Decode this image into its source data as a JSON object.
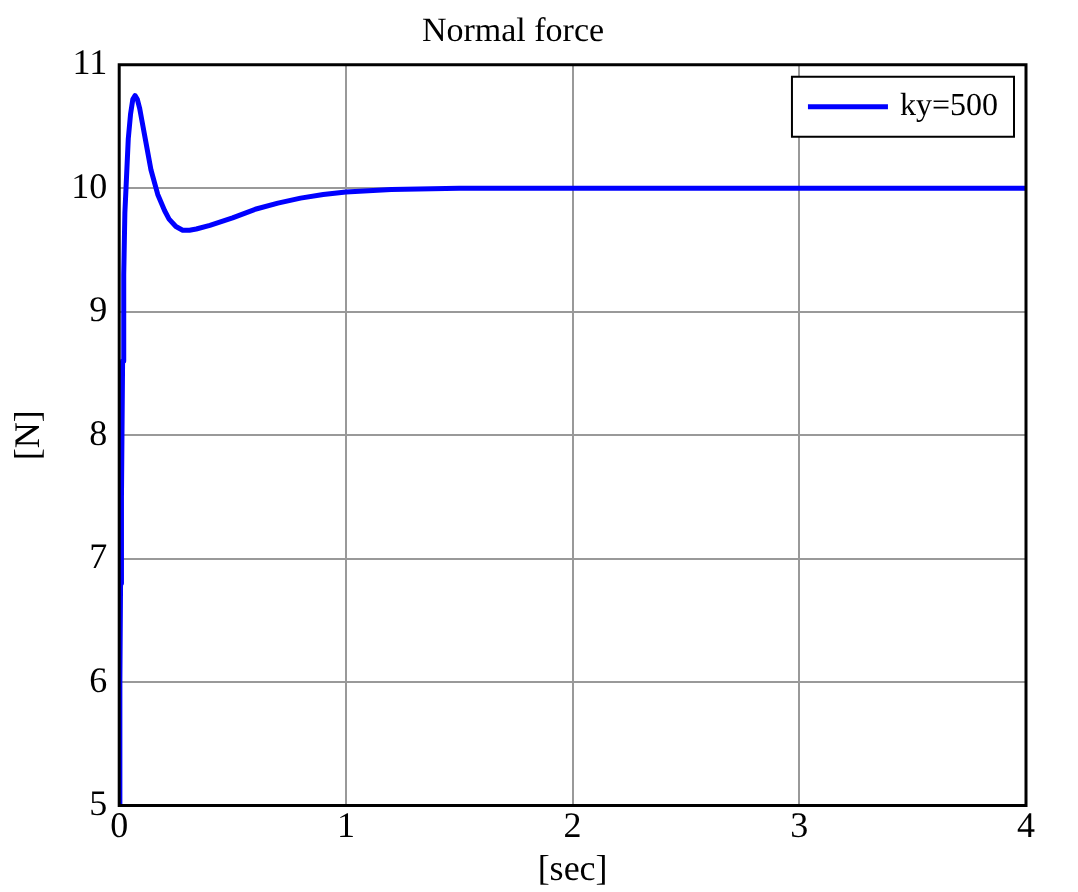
{
  "chart_data": {
    "type": "line",
    "title": "Normal force",
    "xlabel": "[sec]",
    "ylabel": "[N]",
    "xlim": [
      0,
      4
    ],
    "xticks": [
      0,
      1,
      2,
      3,
      4
    ],
    "ylim": [
      5,
      11
    ],
    "yticks": [
      5,
      6,
      7,
      8,
      9,
      10,
      11
    ],
    "grid": true,
    "legend": "top right",
    "marker": "none",
    "line_style": "solid",
    "series": [
      {
        "name": "ky=500",
        "color": "#0000ff",
        "x": [
          0,
          0.003,
          0.006,
          0.01,
          0.015,
          0.02,
          0.025,
          0.03,
          0.04,
          0.05,
          0.06,
          0.07,
          0.08,
          0.09,
          0.1,
          0.12,
          0.14,
          0.17,
          0.2,
          0.22,
          0.25,
          0.28,
          0.31,
          0.34,
          0.4,
          0.5,
          0.6,
          0.7,
          0.8,
          0.9,
          1.0,
          1.2,
          1.5,
          2,
          3,
          4
        ],
        "values": [
          5,
          6,
          6.8,
          7.5,
          8.6,
          9.3,
          9.8,
          10.0,
          10.4,
          10.6,
          10.72,
          10.75,
          10.72,
          10.65,
          10.55,
          10.35,
          10.15,
          9.95,
          9.82,
          9.75,
          9.69,
          9.66,
          9.66,
          9.67,
          9.7,
          9.76,
          9.83,
          9.88,
          9.92,
          9.95,
          9.97,
          9.99,
          10,
          10,
          10,
          10
        ]
      }
    ]
  }
}
